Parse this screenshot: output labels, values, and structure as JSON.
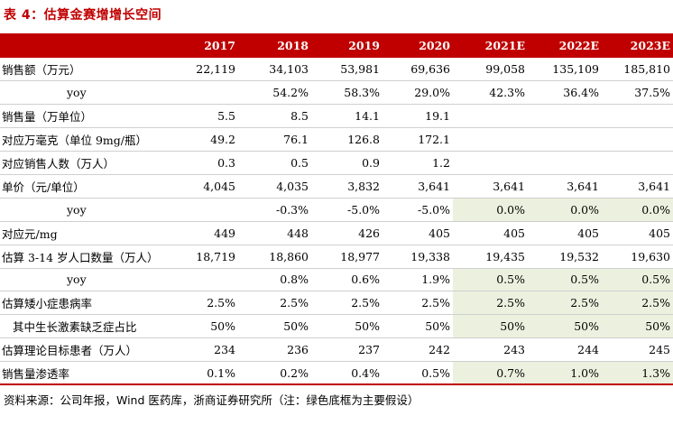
{
  "title": "表 4：估算金赛增增长空间",
  "header": [
    "",
    "2017",
    "2018",
    "2019",
    "2020",
    "2021E",
    "2022E",
    "2023E"
  ],
  "rows": [
    {
      "label": "销售额（万元）",
      "indent": 0,
      "values": [
        "22,119",
        "34,103",
        "53,981",
        "69,636",
        "99,058",
        "135,109",
        "185,810"
      ],
      "shaded": []
    },
    {
      "label": "yoy",
      "indent": 1,
      "values": [
        "",
        "54.2%",
        "58.3%",
        "29.0%",
        "42.3%",
        "36.4%",
        "37.5%"
      ],
      "shaded": []
    },
    {
      "label": "销售量（万单位）",
      "indent": 0,
      "values": [
        "5.5",
        "8.5",
        "14.1",
        "19.1",
        "",
        "",
        ""
      ],
      "shaded": []
    },
    {
      "label": "对应万毫克（单位 9mg/瓶）",
      "indent": 0,
      "values": [
        "49.2",
        "76.1",
        "126.8",
        "172.1",
        "",
        "",
        ""
      ],
      "shaded": []
    },
    {
      "label": "对应销售人数（万人）",
      "indent": 0,
      "values": [
        "0.3",
        "0.5",
        "0.9",
        "1.2",
        "",
        "",
        ""
      ],
      "shaded": []
    },
    {
      "label": "单价（元/单位）",
      "indent": 0,
      "values": [
        "4,045",
        "4,035",
        "3,832",
        "3,641",
        "3,641",
        "3,641",
        "3,641"
      ],
      "shaded": []
    },
    {
      "label": "yoy",
      "indent": 1,
      "values": [
        "",
        "-0.3%",
        "-5.0%",
        "-5.0%",
        "0.0%",
        "0.0%",
        "0.0%"
      ],
      "shaded": [
        4,
        5,
        6
      ]
    },
    {
      "label": "对应元/mg",
      "indent": 0,
      "values": [
        "449",
        "448",
        "426",
        "405",
        "405",
        "405",
        "405"
      ],
      "shaded": []
    },
    {
      "label": "估算 3-14 岁人口数量（万人）",
      "indent": 0,
      "values": [
        "18,719",
        "18,860",
        "18,977",
        "19,338",
        "19,435",
        "19,532",
        "19,630"
      ],
      "shaded": []
    },
    {
      "label": "yoy",
      "indent": 1,
      "values": [
        "",
        "0.8%",
        "0.6%",
        "1.9%",
        "0.5%",
        "0.5%",
        "0.5%"
      ],
      "shaded": [
        4,
        5,
        6
      ]
    },
    {
      "label": "估算矮小症患病率",
      "indent": 0,
      "values": [
        "2.5%",
        "2.5%",
        "2.5%",
        "2.5%",
        "2.5%",
        "2.5%",
        "2.5%"
      ],
      "shaded": [
        4,
        5,
        6
      ]
    },
    {
      "label": "其中生长激素缺乏症占比",
      "indent": 2,
      "values": [
        "50%",
        "50%",
        "50%",
        "50%",
        "50%",
        "50%",
        "50%"
      ],
      "shaded": [
        4,
        5,
        6
      ]
    },
    {
      "label": "估算理论目标患者（万人）",
      "indent": 0,
      "values": [
        "234",
        "236",
        "237",
        "242",
        "243",
        "244",
        "245"
      ],
      "shaded": []
    },
    {
      "label": "销售量渗透率",
      "indent": 0,
      "values": [
        "0.1%",
        "0.2%",
        "0.4%",
        "0.5%",
        "0.7%",
        "1.0%",
        "1.3%"
      ],
      "shaded": [
        4,
        5,
        6
      ]
    }
  ],
  "source": "资料来源：公司年报，Wind 医药库，浙商证券研究所（注：绿色底框为主要假设）"
}
